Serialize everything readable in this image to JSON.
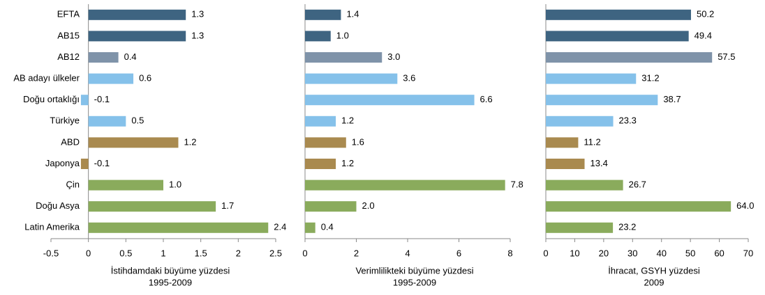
{
  "chart_data": [
    {
      "type": "barh",
      "categories": [
        "EFTA",
        "AB15",
        "AB12",
        "AB adayı ülkeler",
        "Doğu ortaklığı",
        "Türkiye",
        "ABD",
        "Japonya",
        "Çin",
        "Doğu Asya",
        "Latin Amerika"
      ],
      "values": [
        1.3,
        1.3,
        0.4,
        0.6,
        -0.1,
        0.5,
        1.2,
        -0.1,
        1.0,
        1.7,
        2.4
      ],
      "value_labels": [
        "1.3",
        "1.3",
        "0.4",
        "0.6",
        "-0.1",
        "0.5",
        "1.2",
        "-0.1",
        "1.0",
        "1.7",
        "2.4"
      ],
      "colors": [
        "#3e6481",
        "#3e6481",
        "#7f93a9",
        "#85c1ea",
        "#85c1ea",
        "#85c1ea",
        "#a98a4f",
        "#a98a4f",
        "#8aab5c",
        "#8aab5c",
        "#8aab5c"
      ],
      "xlim": [
        -0.5,
        2.5
      ],
      "xticks": [
        -0.5,
        0,
        0.5,
        1,
        1.5,
        2,
        2.5
      ],
      "xlabel": [
        "İstihdamdaki büyüme yüzdesi",
        "1995-2009"
      ]
    },
    {
      "type": "barh",
      "values": [
        1.4,
        1.0,
        3.0,
        3.6,
        6.6,
        1.2,
        1.6,
        1.2,
        7.8,
        2.0,
        0.4
      ],
      "value_labels": [
        "1.4",
        "1.0",
        "3.0",
        "3.6",
        "6.6",
        "1.2",
        "1.6",
        "1.2",
        "7.8",
        "2.0",
        "0.4"
      ],
      "colors": [
        "#3e6481",
        "#3e6481",
        "#7f93a9",
        "#85c1ea",
        "#85c1ea",
        "#85c1ea",
        "#a98a4f",
        "#a98a4f",
        "#8aab5c",
        "#8aab5c",
        "#8aab5c"
      ],
      "xlim": [
        0,
        8
      ],
      "xticks": [
        0,
        2,
        4,
        6,
        8
      ],
      "xlabel": [
        "Verimlilikteki büyüme yüzdesi",
        "1995-2009"
      ]
    },
    {
      "type": "barh",
      "values": [
        50.2,
        49.4,
        57.5,
        31.2,
        38.7,
        23.3,
        11.2,
        13.4,
        26.7,
        64.0,
        23.2
      ],
      "value_labels": [
        "50.2",
        "49.4",
        "57.5",
        "31.2",
        "38.7",
        "23.3",
        "11.2",
        "13.4",
        "26.7",
        "64.0",
        "23.2"
      ],
      "colors": [
        "#3e6481",
        "#3e6481",
        "#7f93a9",
        "#85c1ea",
        "#85c1ea",
        "#85c1ea",
        "#a98a4f",
        "#a98a4f",
        "#8aab5c",
        "#8aab5c",
        "#8aab5c"
      ],
      "xlim": [
        0,
        70
      ],
      "xticks": [
        0,
        10,
        20,
        30,
        40,
        50,
        60,
        70
      ],
      "xlabel": [
        "İhracat, GSYH yüzdesi",
        "2009"
      ]
    }
  ]
}
